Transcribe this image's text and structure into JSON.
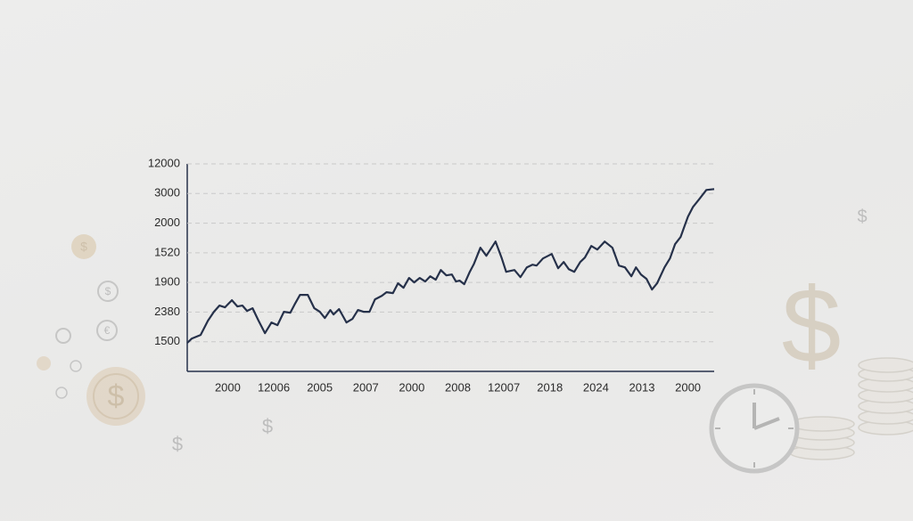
{
  "chart_data": {
    "type": "line",
    "color": "#26314a",
    "grid": true,
    "xlim": [
      0.12,
      11.57
    ],
    "ylim": [
      0,
      7
    ],
    "xticks": [
      {
        "value": 1,
        "label": "2000"
      },
      {
        "value": 2,
        "label": "12006"
      },
      {
        "value": 3,
        "label": "2005"
      },
      {
        "value": 4,
        "label": "2007"
      },
      {
        "value": 5,
        "label": "2000"
      },
      {
        "value": 6,
        "label": "2008"
      },
      {
        "value": 7,
        "label": "12007"
      },
      {
        "value": 8,
        "label": "2018"
      },
      {
        "value": 9,
        "label": "2024"
      },
      {
        "value": 10,
        "label": "2013"
      },
      {
        "value": 11,
        "label": "2000"
      }
    ],
    "yticks": [
      {
        "value": 1,
        "label": "1500"
      },
      {
        "value": 2,
        "label": "2380"
      },
      {
        "value": 3,
        "label": "1900"
      },
      {
        "value": 4,
        "label": "1520"
      },
      {
        "value": 5,
        "label": "2000"
      },
      {
        "value": 6,
        "label": "3000"
      },
      {
        "value": 7,
        "label": "12000"
      }
    ],
    "x": [
      0.12,
      0.22,
      0.41,
      0.57,
      0.7,
      0.82,
      0.94,
      1.09,
      1.21,
      1.32,
      1.42,
      1.54,
      1.67,
      1.81,
      1.95,
      2.08,
      2.22,
      2.36,
      2.45,
      2.57,
      2.74,
      2.88,
      3.0,
      3.11,
      3.23,
      3.3,
      3.42,
      3.58,
      3.71,
      3.83,
      3.95,
      4.08,
      4.2,
      4.35,
      4.45,
      4.59,
      4.7,
      4.82,
      4.94,
      5.05,
      5.17,
      5.29,
      5.4,
      5.52,
      5.63,
      5.75,
      5.87,
      5.96,
      6.04,
      6.14,
      6.26,
      6.35,
      6.49,
      6.62,
      6.82,
      6.95,
      7.05,
      7.23,
      7.36,
      7.5,
      7.62,
      7.71,
      7.85,
      8.04,
      8.18,
      8.3,
      8.41,
      8.53,
      8.66,
      8.76,
      8.9,
      9.03,
      9.19,
      9.36,
      9.5,
      9.63,
      9.77,
      9.87,
      9.98,
      10.1,
      10.22,
      10.33,
      10.49,
      10.61,
      10.72,
      10.84,
      11.0,
      11.11,
      11.25,
      11.4,
      11.57
    ],
    "values": [
      0.96,
      1.11,
      1.23,
      1.71,
      2.01,
      2.22,
      2.16,
      2.4,
      2.19,
      2.22,
      2.04,
      2.13,
      1.71,
      1.29,
      1.65,
      1.56,
      2.01,
      1.98,
      2.25,
      2.58,
      2.58,
      2.13,
      2.01,
      1.8,
      2.07,
      1.92,
      2.1,
      1.65,
      1.77,
      2.07,
      2.01,
      2.01,
      2.43,
      2.55,
      2.67,
      2.64,
      2.97,
      2.82,
      3.15,
      3.0,
      3.15,
      3.03,
      3.21,
      3.09,
      3.42,
      3.24,
      3.27,
      3.03,
      3.06,
      2.94,
      3.36,
      3.63,
      4.17,
      3.9,
      4.38,
      3.84,
      3.36,
      3.42,
      3.18,
      3.51,
      3.6,
      3.57,
      3.81,
      3.96,
      3.48,
      3.69,
      3.45,
      3.36,
      3.69,
      3.84,
      4.23,
      4.11,
      4.38,
      4.17,
      3.57,
      3.51,
      3.21,
      3.51,
      3.27,
      3.12,
      2.76,
      2.97,
      3.51,
      3.81,
      4.29,
      4.53,
      5.22,
      5.55,
      5.82,
      6.12,
      6.15
    ]
  }
}
